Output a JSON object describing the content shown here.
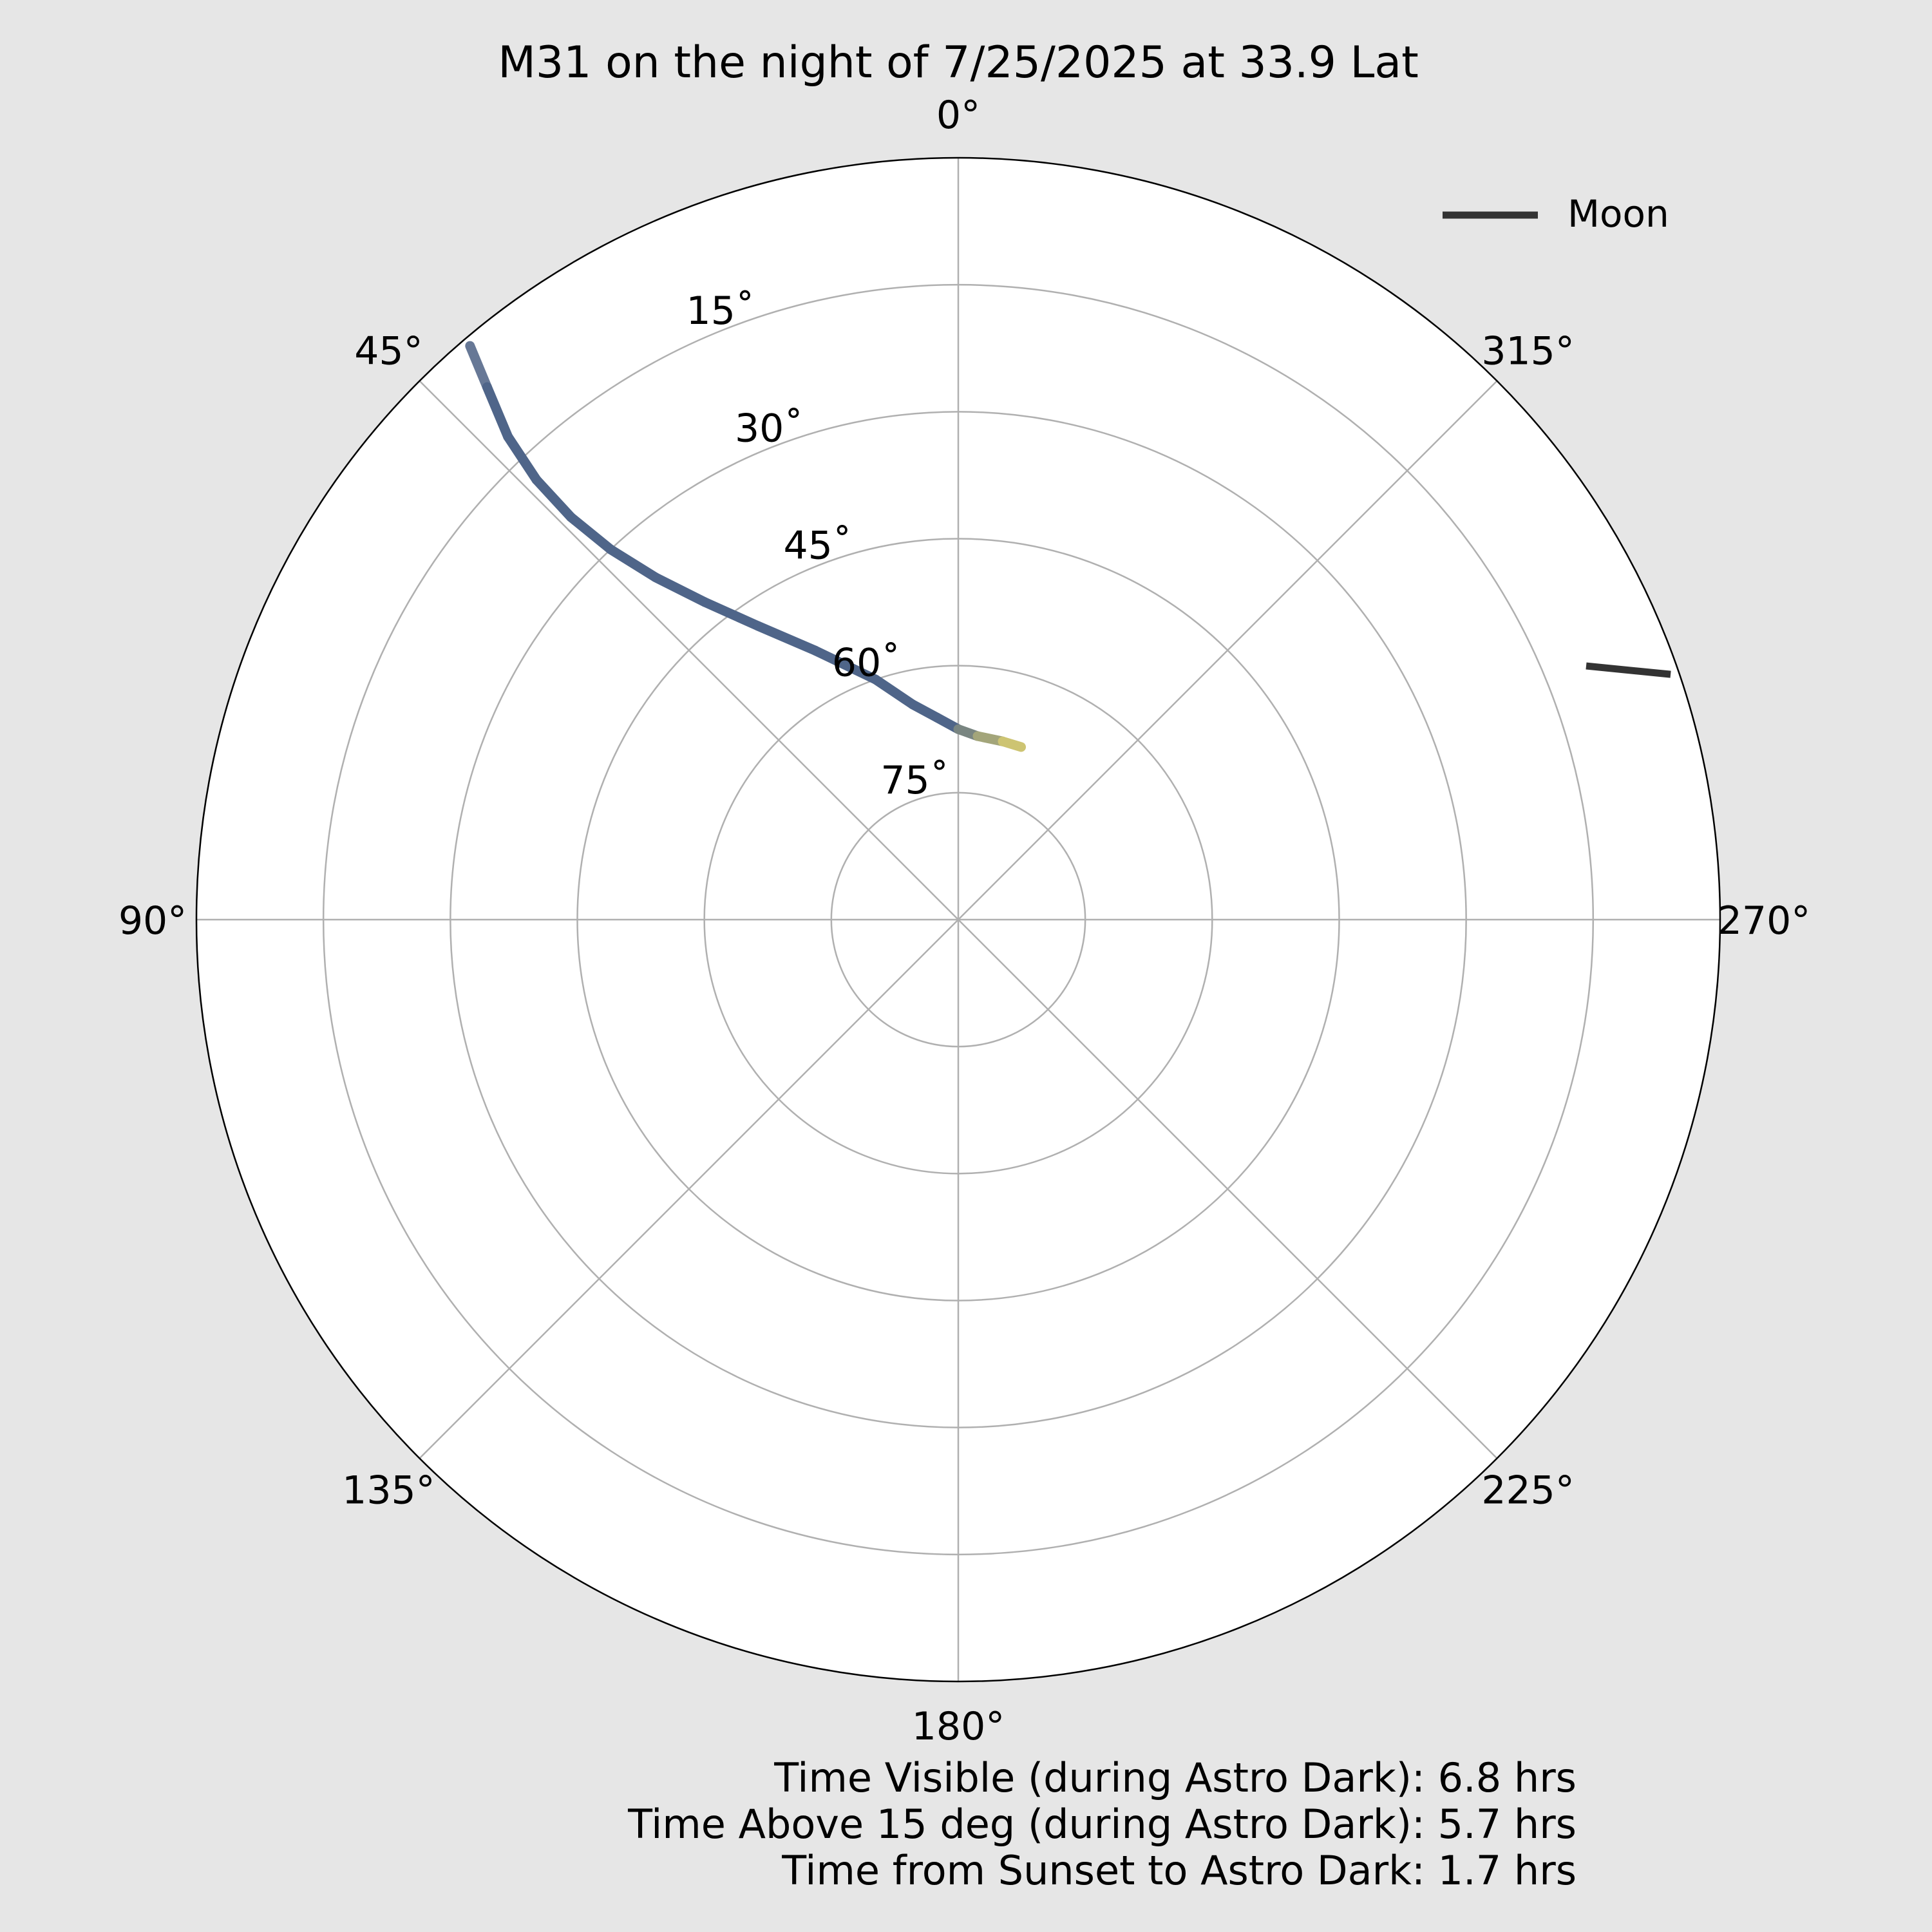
{
  "chart_data": {
    "type": "line",
    "projection": "polar",
    "title": "M31 on the night of 7/25/2025 at 33.9 Lat",
    "angular_axis": {
      "quantity": "azimuth",
      "zero_location": "top",
      "direction": "counterclockwise",
      "tick_values": [
        0,
        45,
        90,
        135,
        180,
        225,
        270,
        315
      ],
      "tick_labels": [
        "0°",
        "45°",
        "90°",
        "135°",
        "180°",
        "225°",
        "270°",
        "315°"
      ]
    },
    "radial_axis": {
      "quantity": "altitude",
      "range": [
        90,
        0
      ],
      "tick_values": [
        15,
        30,
        45,
        60,
        75
      ],
      "tick_labels": [
        "15˚",
        "30˚",
        "45˚",
        "60˚",
        "75˚"
      ],
      "grid": true
    },
    "legend": {
      "position": "top-right",
      "entries": [
        "Moon"
      ]
    },
    "colors": {
      "figure_background": "#e6e6e6",
      "plot_background": "#ffffff",
      "grid": "#b0b0b0",
      "moon": "#333333",
      "track_start": "#7e8aa2",
      "track_main": "#4f6589",
      "track_end": "#f7e46a"
    },
    "series": [
      {
        "colormap": "cividis-like (blue to yellow)",
        "points": [
          {
            "az": 40.4,
            "alt": 1.0
          },
          {
            "az": 41.5,
            "alt": 6.0
          },
          {
            "az": 43.0,
            "alt": 12.0
          },
          {
            "az": 43.8,
            "alt": 18.0
          },
          {
            "az": 43.9,
            "alt": 24.0
          },
          {
            "az": 43.2,
            "alt": 30.0
          },
          {
            "az": 41.5,
            "alt": 36.0
          },
          {
            "az": 38.6,
            "alt": 42.0
          },
          {
            "az": 34.3,
            "alt": 48.0
          },
          {
            "az": 28.0,
            "alt": 54.0
          },
          {
            "az": 19.0,
            "alt": 60.0
          },
          {
            "az": 12.0,
            "alt": 64.0
          },
          {
            "az": 6.0,
            "alt": 66.0
          },
          {
            "az": 0.0,
            "alt": 67.5
          },
          {
            "az": -6.0,
            "alt": 68.2
          },
          {
            "az": -14.0,
            "alt": 68.3
          },
          {
            "az": -20.0,
            "alt": 68.3
          }
        ]
      },
      {
        "name": "Moon",
        "points": [
          {
            "az": 289.0,
            "alt": 1.0
          },
          {
            "az": 292.0,
            "alt": 10.0
          }
        ]
      }
    ],
    "annotations": [
      "Time Visible (during Astro Dark): 6.8 hrs",
      "Time Above 15 deg (during Astro Dark): 5.7 hrs",
      "Time from Sunset to Astro Dark: 1.7 hrs"
    ]
  }
}
